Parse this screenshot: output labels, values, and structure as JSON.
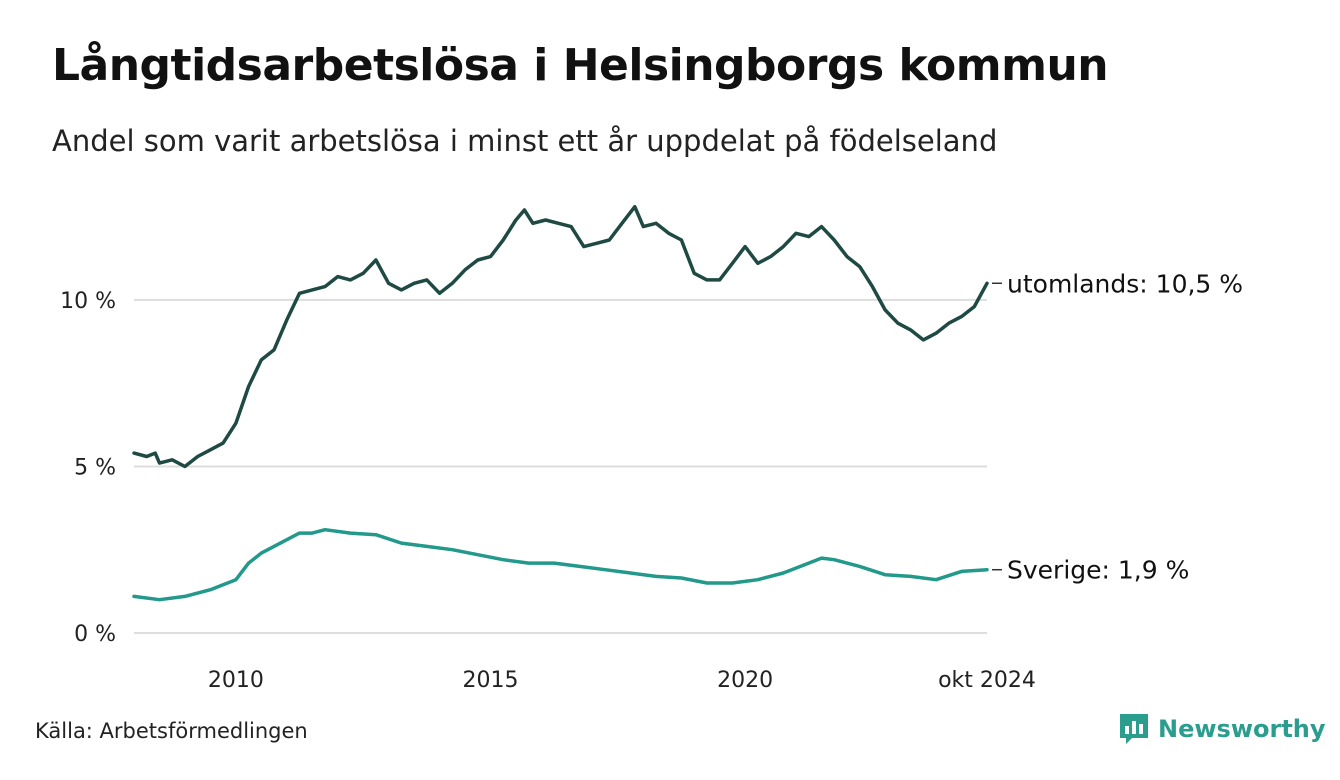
{
  "header": {
    "title": "Långtidsarbetslösa i Helsingborgs kommun",
    "subtitle": "Andel som varit arbetslösa i minst ett år uppdelat på födelseland"
  },
  "footer": {
    "source": "Källa: Arbetsförmedlingen",
    "brand": "Newsworthy",
    "brand_icon": "newsworthy-logo-icon"
  },
  "colors": {
    "utomlands": "#1f4a43",
    "sverige": "#22998a",
    "grid": "#dddddd",
    "brand": "#2a9d8f"
  },
  "chart_data": {
    "type": "line",
    "xlim": [
      "2008-01",
      "2024-10"
    ],
    "ylim": [
      0,
      13
    ],
    "yticks": [
      0,
      5,
      10
    ],
    "ytick_labels": [
      "0 %",
      "5 %",
      "10 %"
    ],
    "xtick_labels": [
      "2010",
      "2015",
      "2020",
      "okt 2024"
    ],
    "xtick_positions": [
      "2010-01",
      "2015-01",
      "2020-01",
      "2024-10"
    ],
    "grid": true,
    "series": [
      {
        "name": "utomlands",
        "end_label": "utomlands: 10,5 %",
        "points": [
          [
            "2008-01",
            5.4
          ],
          [
            "2008-04",
            5.3
          ],
          [
            "2008-06",
            5.4
          ],
          [
            "2008-07",
            5.1
          ],
          [
            "2008-10",
            5.2
          ],
          [
            "2009-01",
            5.0
          ],
          [
            "2009-04",
            5.3
          ],
          [
            "2009-07",
            5.5
          ],
          [
            "2009-10",
            5.7
          ],
          [
            "2010-01",
            6.3
          ],
          [
            "2010-04",
            7.4
          ],
          [
            "2010-07",
            8.2
          ],
          [
            "2010-10",
            8.5
          ],
          [
            "2011-01",
            9.4
          ],
          [
            "2011-04",
            10.2
          ],
          [
            "2011-07",
            10.3
          ],
          [
            "2011-10",
            10.4
          ],
          [
            "2012-01",
            10.7
          ],
          [
            "2012-04",
            10.6
          ],
          [
            "2012-07",
            10.8
          ],
          [
            "2012-10",
            11.2
          ],
          [
            "2013-01",
            10.5
          ],
          [
            "2013-04",
            10.3
          ],
          [
            "2013-07",
            10.5
          ],
          [
            "2013-10",
            10.6
          ],
          [
            "2014-01",
            10.2
          ],
          [
            "2014-04",
            10.5
          ],
          [
            "2014-07",
            10.9
          ],
          [
            "2014-10",
            11.2
          ],
          [
            "2015-01",
            11.3
          ],
          [
            "2015-04",
            11.8
          ],
          [
            "2015-07",
            12.4
          ],
          [
            "2015-09",
            12.7
          ],
          [
            "2015-11",
            12.3
          ],
          [
            "2016-02",
            12.4
          ],
          [
            "2016-05",
            12.3
          ],
          [
            "2016-08",
            12.2
          ],
          [
            "2016-11",
            11.6
          ],
          [
            "2017-02",
            11.7
          ],
          [
            "2017-05",
            11.8
          ],
          [
            "2017-08",
            12.3
          ],
          [
            "2017-11",
            12.8
          ],
          [
            "2018-01",
            12.2
          ],
          [
            "2018-04",
            12.3
          ],
          [
            "2018-07",
            12.0
          ],
          [
            "2018-10",
            11.8
          ],
          [
            "2019-01",
            10.8
          ],
          [
            "2019-04",
            10.6
          ],
          [
            "2019-07",
            10.6
          ],
          [
            "2019-10",
            11.1
          ],
          [
            "2020-01",
            11.6
          ],
          [
            "2020-04",
            11.1
          ],
          [
            "2020-07",
            11.3
          ],
          [
            "2020-10",
            11.6
          ],
          [
            "2021-01",
            12.0
          ],
          [
            "2021-04",
            11.9
          ],
          [
            "2021-07",
            12.2
          ],
          [
            "2021-10",
            11.8
          ],
          [
            "2022-01",
            11.3
          ],
          [
            "2022-04",
            11.0
          ],
          [
            "2022-07",
            10.4
          ],
          [
            "2022-10",
            9.7
          ],
          [
            "2023-01",
            9.3
          ],
          [
            "2023-04",
            9.1
          ],
          [
            "2023-07",
            8.8
          ],
          [
            "2023-10",
            9.0
          ],
          [
            "2024-01",
            9.3
          ],
          [
            "2024-04",
            9.5
          ],
          [
            "2024-07",
            9.8
          ],
          [
            "2024-10",
            10.5
          ]
        ]
      },
      {
        "name": "Sverige",
        "end_label": "Sverige:  1,9 %",
        "points": [
          [
            "2008-01",
            1.1
          ],
          [
            "2008-07",
            1.0
          ],
          [
            "2009-01",
            1.1
          ],
          [
            "2009-07",
            1.3
          ],
          [
            "2010-01",
            1.6
          ],
          [
            "2010-04",
            2.1
          ],
          [
            "2010-07",
            2.4
          ],
          [
            "2010-10",
            2.6
          ],
          [
            "2011-01",
            2.8
          ],
          [
            "2011-04",
            3.0
          ],
          [
            "2011-07",
            3.0
          ],
          [
            "2011-10",
            3.1
          ],
          [
            "2012-04",
            3.0
          ],
          [
            "2012-10",
            2.95
          ],
          [
            "2013-04",
            2.7
          ],
          [
            "2013-10",
            2.6
          ],
          [
            "2014-04",
            2.5
          ],
          [
            "2014-10",
            2.35
          ],
          [
            "2015-04",
            2.2
          ],
          [
            "2015-10",
            2.1
          ],
          [
            "2016-04",
            2.1
          ],
          [
            "2016-10",
            2.0
          ],
          [
            "2017-04",
            1.9
          ],
          [
            "2017-10",
            1.8
          ],
          [
            "2018-04",
            1.7
          ],
          [
            "2018-10",
            1.65
          ],
          [
            "2019-04",
            1.5
          ],
          [
            "2019-10",
            1.5
          ],
          [
            "2020-04",
            1.6
          ],
          [
            "2020-10",
            1.8
          ],
          [
            "2021-04",
            2.1
          ],
          [
            "2021-07",
            2.25
          ],
          [
            "2021-10",
            2.2
          ],
          [
            "2022-04",
            2.0
          ],
          [
            "2022-10",
            1.75
          ],
          [
            "2023-04",
            1.7
          ],
          [
            "2023-10",
            1.6
          ],
          [
            "2024-04",
            1.85
          ],
          [
            "2024-10",
            1.9
          ]
        ]
      }
    ]
  }
}
